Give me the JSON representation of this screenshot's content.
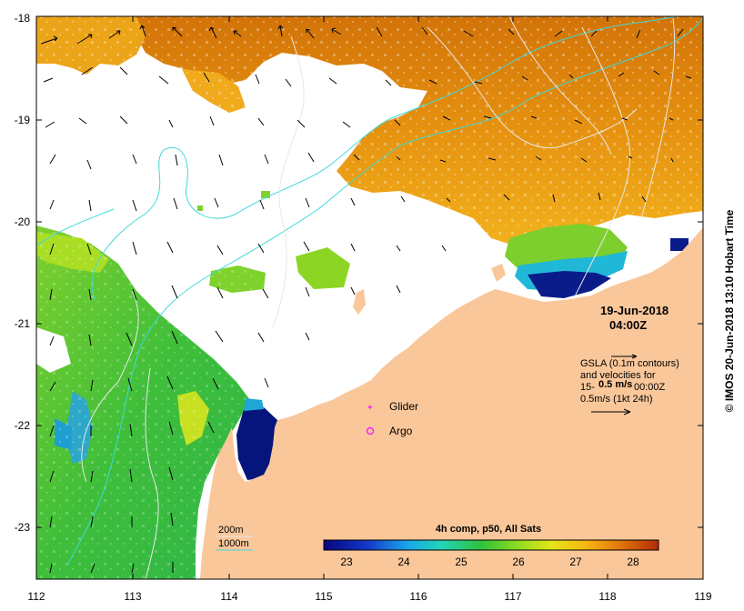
{
  "map": {
    "lon_ticks": [
      "112",
      "113",
      "114",
      "115",
      "116",
      "117",
      "118",
      "119"
    ],
    "lat_ticks": [
      "-18",
      "-19",
      "-20",
      "-21",
      "-22",
      "-23"
    ],
    "date": "19-Jun-2018",
    "time": "04:00Z",
    "gsla_note": [
      "GSLA (0.1m contours)",
      "and velocities for",
      "15-",
      "0.5m/s (1kt 24h)"
    ],
    "gsla_note_line3_rest": "00:00Z",
    "overlap_text": "0.5 m/s",
    "legend": {
      "glider": "Glider",
      "argo": "Argo"
    },
    "bathy_legend": {
      "d200": "200m",
      "d1000": "1000m"
    },
    "colorbar": {
      "title": "4h comp, p50, All Sats",
      "ticks": [
        "23",
        "24",
        "25",
        "26",
        "27",
        "28"
      ]
    },
    "credit": "© IMOS 20-Jun-2018 13:10 Hobart Time",
    "colors": {
      "land": "#f9c79a",
      "cyan": "#3fd9d9",
      "magenta": "#ff22ff",
      "warm": "#e88b0c",
      "green": "#44c23c",
      "deep_blue": "#04127a"
    }
  }
}
